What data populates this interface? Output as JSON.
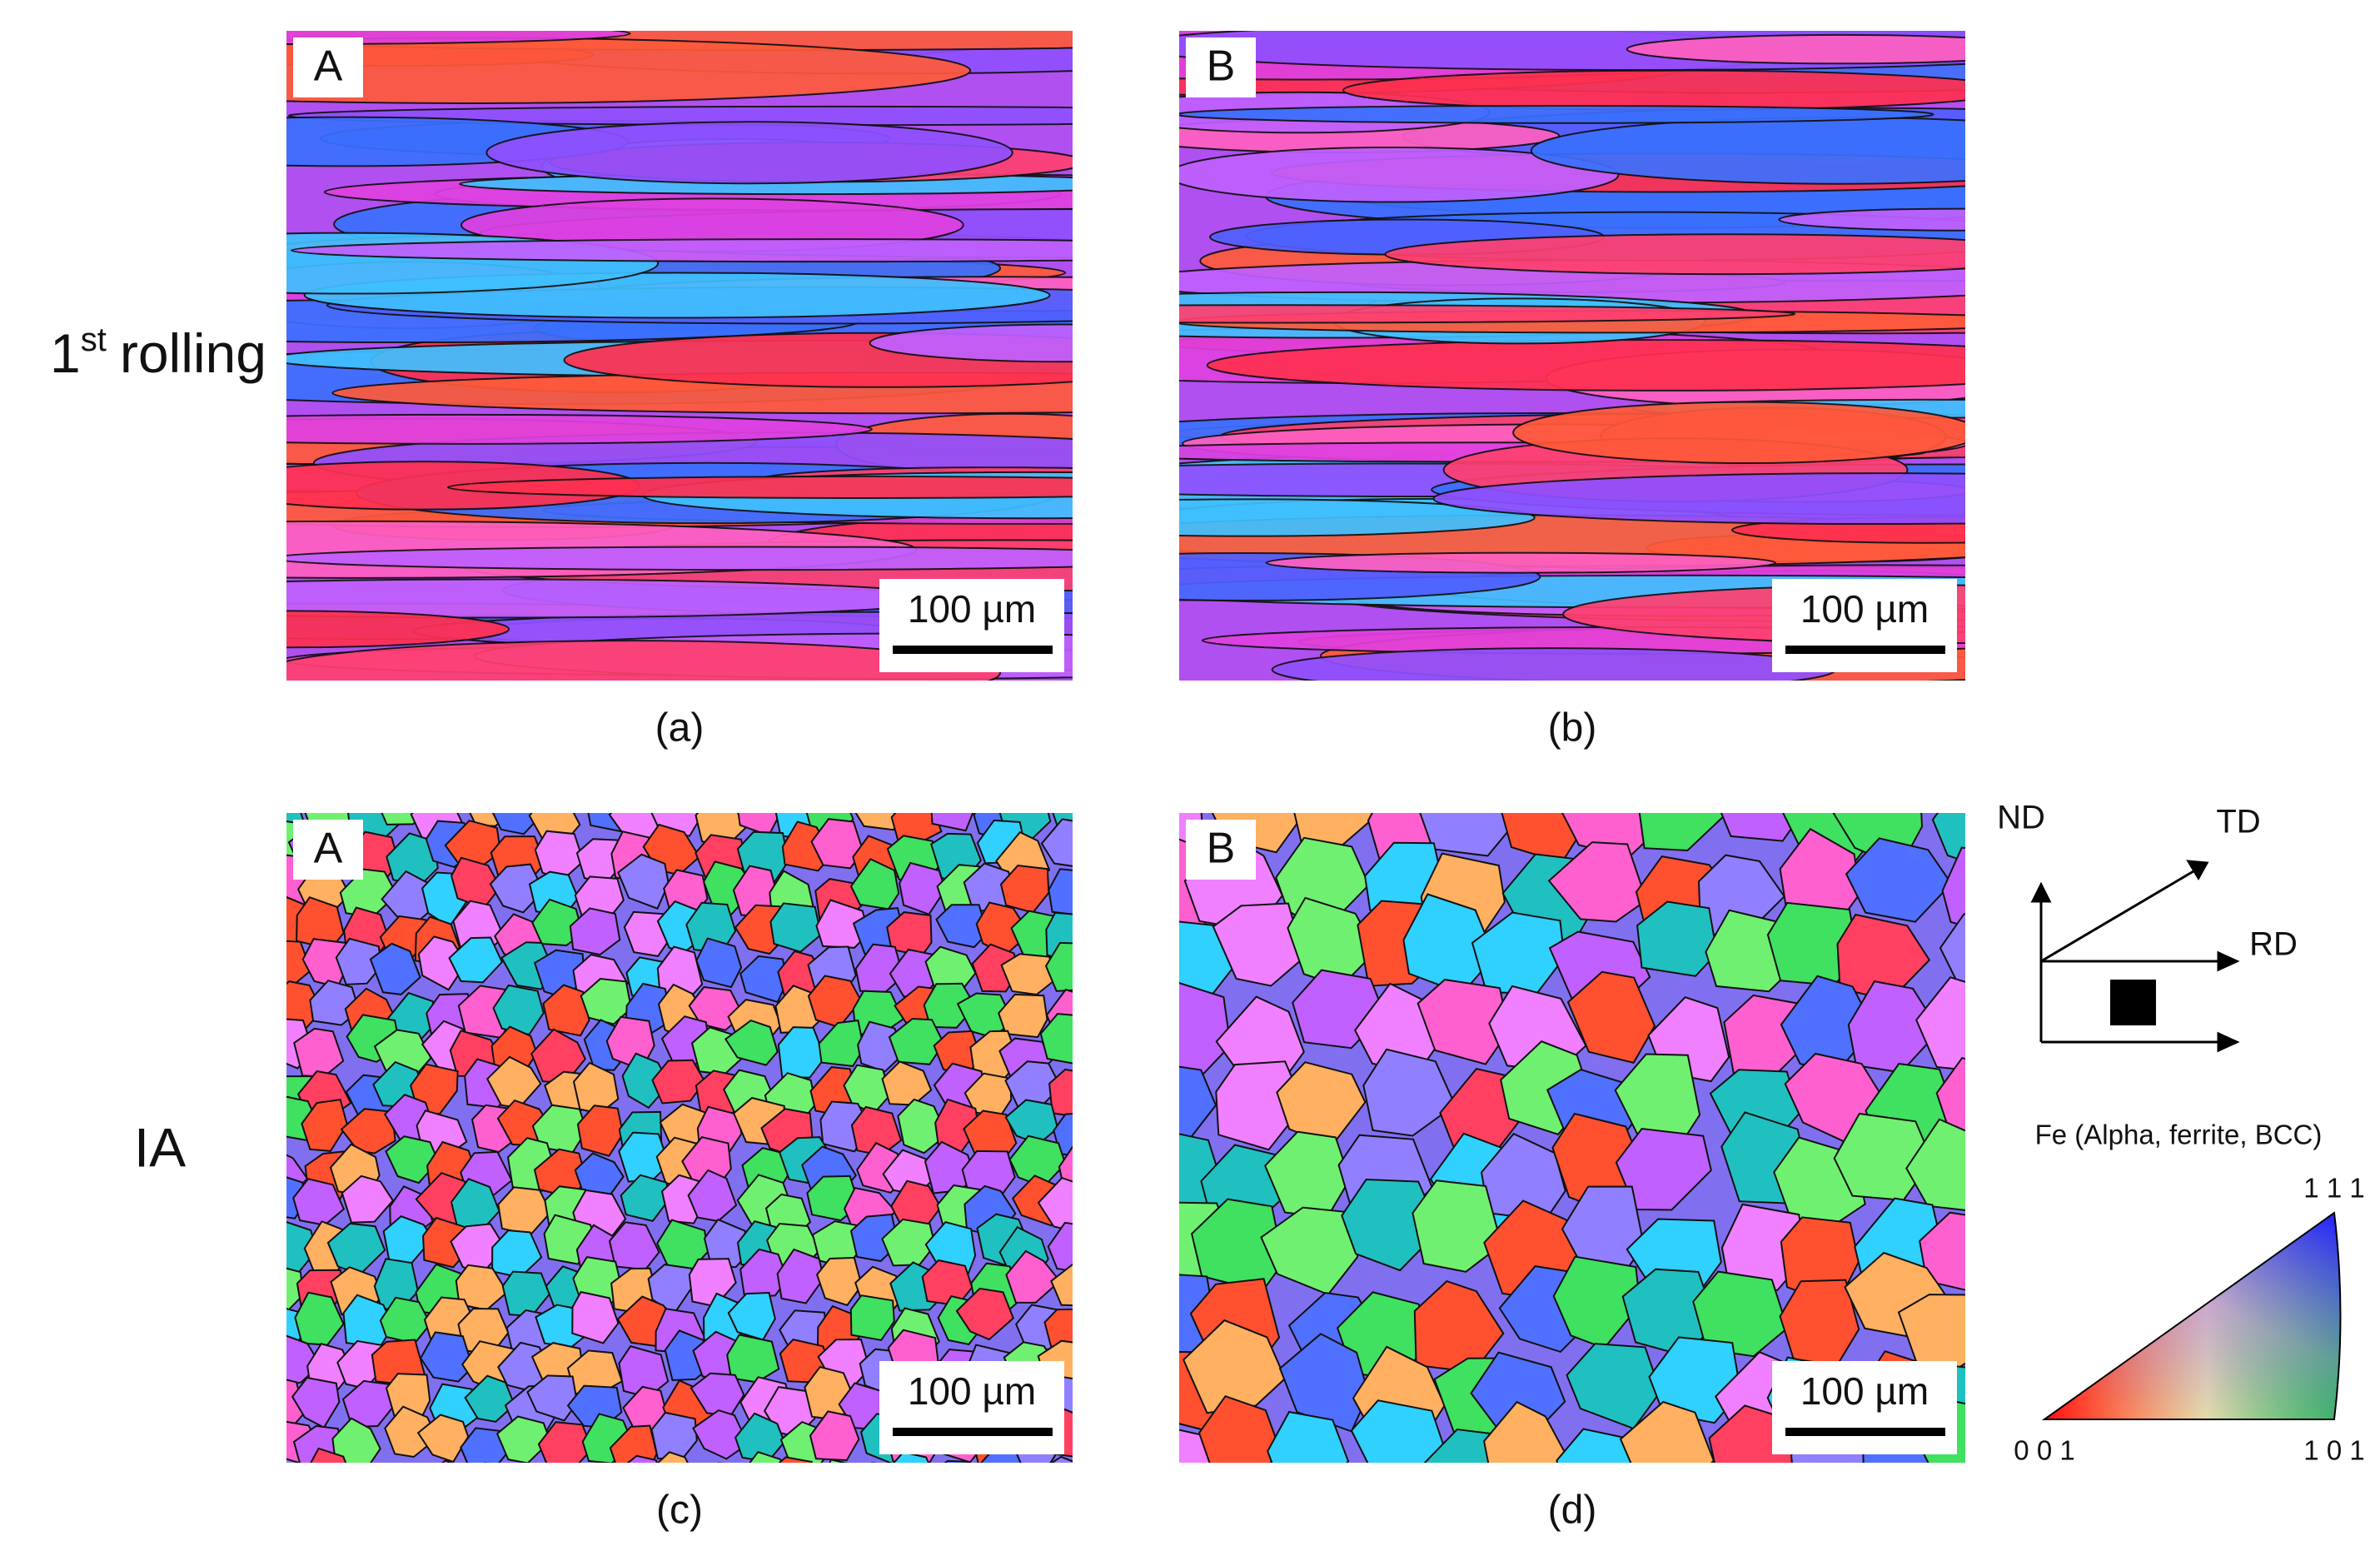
{
  "rows": [
    {
      "label": {
        "number": "1",
        "suffix": "st",
        "text": "rolling"
      }
    },
    {
      "label": {
        "text": "IA"
      }
    }
  ],
  "panels": [
    {
      "letter": "A",
      "scale_bar": "100 µm",
      "caption": "(a)"
    },
    {
      "letter": "B",
      "scale_bar": "100 µm",
      "caption": "(b)"
    },
    {
      "letter": "A",
      "scale_bar": "100 µm",
      "caption": "(c)"
    },
    {
      "letter": "B",
      "scale_bar": "100 µm",
      "caption": "(d)"
    }
  ],
  "legend": {
    "axes": {
      "nd": "ND",
      "td": "TD",
      "rd": "RD"
    },
    "title": "Fe (Alpha, ferrite, BCC)",
    "corners": {
      "c001": "0 0 1",
      "c101": "1 0 1",
      "c111": "1 1 1"
    }
  }
}
